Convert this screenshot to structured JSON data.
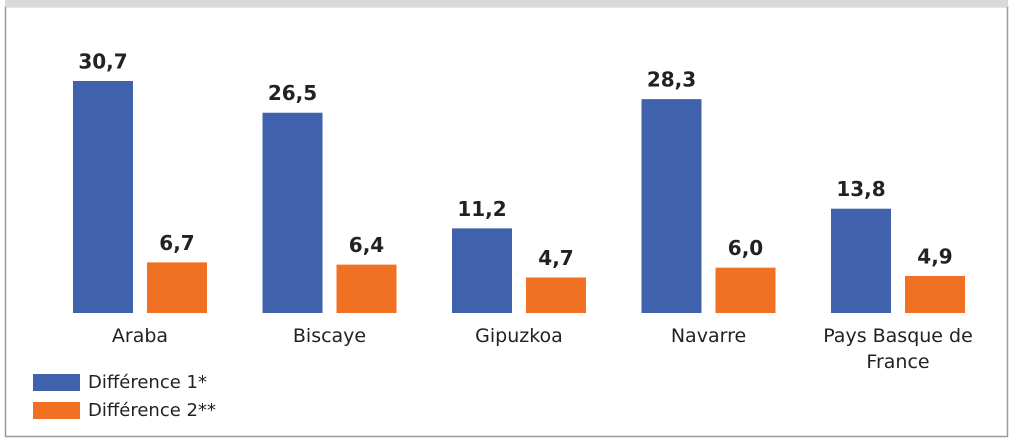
{
  "chart_data": {
    "type": "bar",
    "categories": [
      "Araba",
      "Biscaye",
      "Gipuzkoa",
      "Navarre",
      "Pays Basque de France"
    ],
    "series": [
      {
        "name": "Différence 1*",
        "color": "#4062ad",
        "values": [
          30.7,
          26.5,
          11.2,
          28.3,
          13.8
        ],
        "value_labels": [
          "30,7",
          "26,5",
          "11,2",
          "28,3",
          "13,8"
        ]
      },
      {
        "name": "Différence 2**",
        "color": "#f07124",
        "values": [
          6.7,
          6.4,
          4.7,
          6.0,
          4.9
        ],
        "value_labels": [
          "6,7",
          "6,4",
          "4,7",
          "6,0",
          "4,9"
        ]
      }
    ],
    "legend": "bottom-left"
  }
}
